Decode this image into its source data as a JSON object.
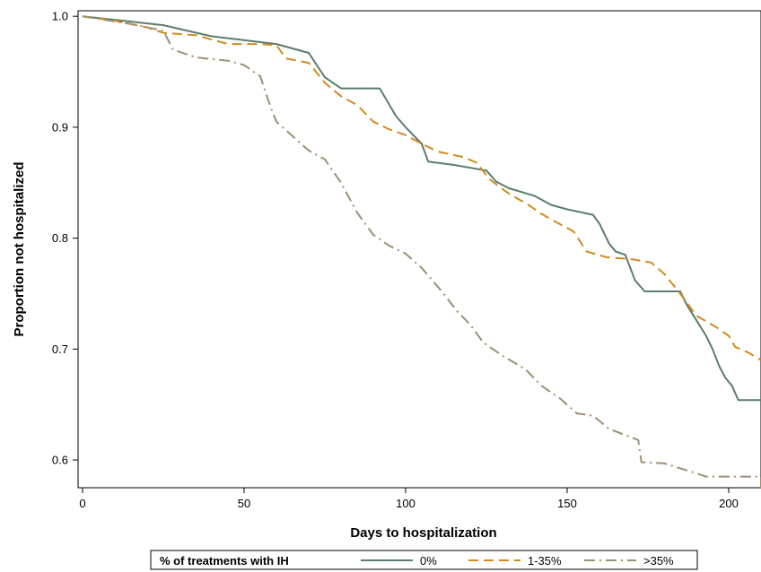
{
  "chart_data": {
    "type": "line",
    "title": "",
    "xlabel": "Days to hospitalization",
    "ylabel": "Proportion not hospitalized",
    "xlim": [
      0,
      210
    ],
    "ylim": [
      0.575,
      1.005
    ],
    "x_ticks": [
      0,
      50,
      100,
      150,
      200
    ],
    "x_tick_labels": [
      "0",
      "50",
      "100",
      "150",
      "200"
    ],
    "y_ticks": [
      0.6,
      0.7,
      0.8,
      0.9,
      1.0
    ],
    "y_tick_labels": [
      "0.6",
      "0.7",
      "0.8",
      "0.9",
      "1.0"
    ],
    "grid": false,
    "legend": {
      "placement": "bottom",
      "title": "% of treatments with IH"
    },
    "series": [
      {
        "name": "0%",
        "color": "#5a7d6a",
        "dash": "solid",
        "points": [
          [
            0,
            1.0
          ],
          [
            25,
            0.992
          ],
          [
            40,
            0.982
          ],
          [
            60,
            0.975
          ],
          [
            70,
            0.967
          ],
          [
            75,
            0.945
          ],
          [
            80,
            0.935
          ],
          [
            92,
            0.935
          ],
          [
            97,
            0.91
          ],
          [
            100,
            0.9
          ],
          [
            105,
            0.885
          ],
          [
            107,
            0.869
          ],
          [
            115,
            0.866
          ],
          [
            125,
            0.861
          ],
          [
            128,
            0.851
          ],
          [
            132,
            0.845
          ],
          [
            140,
            0.838
          ],
          [
            145,
            0.83
          ],
          [
            150,
            0.826
          ],
          [
            158,
            0.821
          ],
          [
            160,
            0.813
          ],
          [
            163,
            0.795
          ],
          [
            165,
            0.788
          ],
          [
            168,
            0.785
          ],
          [
            171,
            0.762
          ],
          [
            174,
            0.752
          ],
          [
            185,
            0.752
          ],
          [
            187,
            0.74
          ],
          [
            190,
            0.726
          ],
          [
            193,
            0.712
          ],
          [
            195,
            0.7
          ],
          [
            197,
            0.685
          ],
          [
            199,
            0.674
          ],
          [
            201,
            0.667
          ],
          [
            203,
            0.654
          ],
          [
            210,
            0.654
          ]
        ]
      },
      {
        "name": "1-35%",
        "color": "#d48a1e",
        "dash": "dashed",
        "points": [
          [
            0,
            1.0
          ],
          [
            10,
            0.996
          ],
          [
            20,
            0.99
          ],
          [
            25,
            0.985
          ],
          [
            35,
            0.983
          ],
          [
            45,
            0.975
          ],
          [
            55,
            0.975
          ],
          [
            60,
            0.974
          ],
          [
            63,
            0.962
          ],
          [
            70,
            0.958
          ],
          [
            75,
            0.94
          ],
          [
            80,
            0.928
          ],
          [
            85,
            0.92
          ],
          [
            90,
            0.905
          ],
          [
            95,
            0.898
          ],
          [
            100,
            0.893
          ],
          [
            105,
            0.885
          ],
          [
            110,
            0.878
          ],
          [
            118,
            0.873
          ],
          [
            122,
            0.868
          ],
          [
            126,
            0.853
          ],
          [
            132,
            0.84
          ],
          [
            138,
            0.83
          ],
          [
            142,
            0.822
          ],
          [
            145,
            0.817
          ],
          [
            152,
            0.806
          ],
          [
            156,
            0.788
          ],
          [
            162,
            0.783
          ],
          [
            170,
            0.781
          ],
          [
            176,
            0.778
          ],
          [
            180,
            0.768
          ],
          [
            185,
            0.75
          ],
          [
            190,
            0.73
          ],
          [
            196,
            0.72
          ],
          [
            200,
            0.712
          ],
          [
            202,
            0.702
          ],
          [
            206,
            0.697
          ],
          [
            210,
            0.69
          ]
        ]
      },
      {
        "name": ">35%",
        "color": "#9c9074",
        "dash": "dashdot",
        "points": [
          [
            0,
            1.0
          ],
          [
            15,
            0.993
          ],
          [
            25,
            0.987
          ],
          [
            28,
            0.97
          ],
          [
            35,
            0.963
          ],
          [
            45,
            0.96
          ],
          [
            50,
            0.956
          ],
          [
            55,
            0.946
          ],
          [
            58,
            0.92
          ],
          [
            60,
            0.905
          ],
          [
            65,
            0.892
          ],
          [
            70,
            0.879
          ],
          [
            75,
            0.871
          ],
          [
            80,
            0.85
          ],
          [
            85,
            0.823
          ],
          [
            90,
            0.803
          ],
          [
            95,
            0.793
          ],
          [
            100,
            0.786
          ],
          [
            105,
            0.773
          ],
          [
            108,
            0.763
          ],
          [
            112,
            0.749
          ],
          [
            116,
            0.734
          ],
          [
            120,
            0.722
          ],
          [
            124,
            0.706
          ],
          [
            130,
            0.694
          ],
          [
            137,
            0.682
          ],
          [
            142,
            0.667
          ],
          [
            148,
            0.655
          ],
          [
            153,
            0.642
          ],
          [
            158,
            0.64
          ],
          [
            163,
            0.628
          ],
          [
            172,
            0.618
          ],
          [
            173,
            0.598
          ],
          [
            180,
            0.597
          ],
          [
            190,
            0.588
          ],
          [
            193,
            0.585
          ],
          [
            200,
            0.585
          ],
          [
            210,
            0.585
          ],
          [
            210,
            0.575
          ]
        ]
      }
    ]
  }
}
